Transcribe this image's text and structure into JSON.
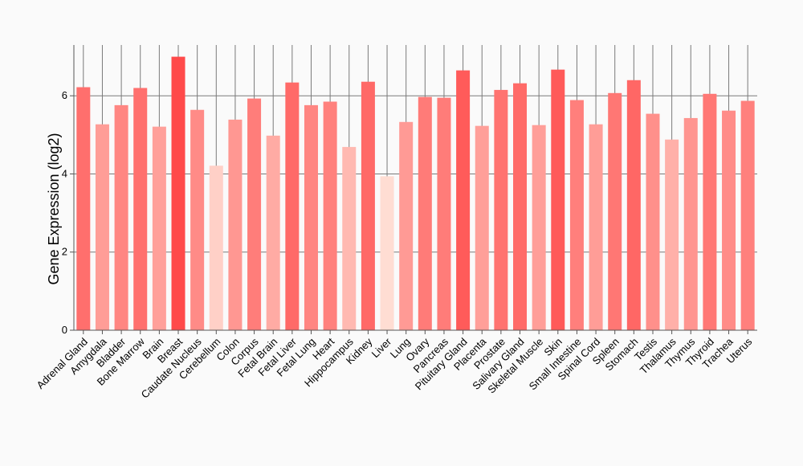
{
  "chart_data": {
    "type": "bar",
    "title": "",
    "xlabel": "",
    "ylabel": "Gene Expression (log2)",
    "ylim": [
      0,
      7.3
    ],
    "yticks": [
      0,
      2,
      4,
      6
    ],
    "grid": true,
    "categories": [
      "Adrenal Gland",
      "Amygdala",
      "Bladder",
      "Bone Marrow",
      "Brain",
      "Breast",
      "Caudate Nucleus",
      "Cerebellum",
      "Colon",
      "Corpus",
      "Fetal Brain",
      "Fetal Liver",
      "Fetal Lung",
      "Heart",
      "Hippocampus",
      "Kidney",
      "Liver",
      "Lung",
      "Ovary",
      "Pancreas",
      "Pituitary Gland",
      "Placenta",
      "Prostate",
      "Salivary Gland",
      "Skeletal Muscle",
      "Skin",
      "Small Intestine",
      "Spinal Cord",
      "Spleen",
      "Stomach",
      "Testis",
      "Thalamus",
      "Thymus",
      "Thyroid",
      "Trachea",
      "Uterus"
    ],
    "values": [
      6.22,
      5.27,
      5.76,
      6.2,
      5.21,
      7.0,
      5.64,
      4.21,
      5.39,
      5.93,
      4.98,
      6.34,
      5.76,
      5.85,
      4.69,
      6.36,
      3.94,
      5.33,
      5.97,
      5.95,
      6.65,
      5.23,
      6.15,
      6.32,
      5.25,
      6.67,
      5.89,
      5.27,
      6.07,
      6.4,
      5.54,
      4.88,
      5.43,
      6.05,
      5.62,
      5.87
    ],
    "colors": {
      "low": "#ffddd3",
      "high": "#ff4a4a"
    }
  }
}
